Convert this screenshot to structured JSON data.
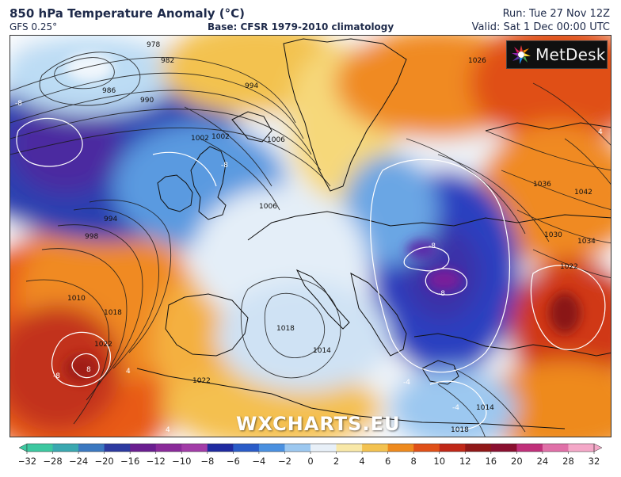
{
  "header": {
    "title": "850 hPa Temperature Anomaly (°C)",
    "model": "GFS 0.25°",
    "base": "Base: CFSR 1979-2010 climatology",
    "run": "Run: Tue 27 Nov 12Z",
    "valid": "Valid: Sat 1 Dec 00:00 UTC"
  },
  "branding": {
    "logo_text": "MetDesk",
    "watermark": "WXCHARTS.EU"
  },
  "map": {
    "region": "Europe",
    "isobar_labels": [
      "978",
      "982",
      "986",
      "990",
      "994",
      "1002",
      "1006",
      "994",
      "998",
      "1010",
      "1018",
      "1022",
      "1018",
      "1014",
      "1022",
      "1026",
      "1030",
      "1034",
      "1036",
      "1042",
      "1022",
      "1014",
      "1018",
      "1002",
      "1006"
    ],
    "anomaly_labels": [
      "-8",
      "-8",
      "-8",
      "-8",
      "-8",
      "8",
      "4",
      "4",
      "-4",
      "-4",
      "4"
    ]
  },
  "colorbar": {
    "ticks": [
      "−32",
      "−28",
      "−24",
      "−20",
      "−16",
      "−12",
      "−10",
      "−8",
      "−6",
      "−4",
      "−2",
      "0",
      "2",
      "4",
      "6",
      "8",
      "10",
      "12",
      "16",
      "20",
      "24",
      "28",
      "32"
    ],
    "colors": [
      "#3cc8a0",
      "#3aa8b0",
      "#3b78c0",
      "#2d3aa0",
      "#6a1e90",
      "#8a2a9a",
      "#a23ca8",
      "#1f2aa0",
      "#2a5cc8",
      "#4a90e0",
      "#9cc8f0",
      "#e8f0f8",
      "#f8e8a8",
      "#f3c250",
      "#ee8a1e",
      "#e05018",
      "#c02818",
      "#901818",
      "#8a1030",
      "#c0307a",
      "#e070a8",
      "#f4a8c8"
    ]
  }
}
